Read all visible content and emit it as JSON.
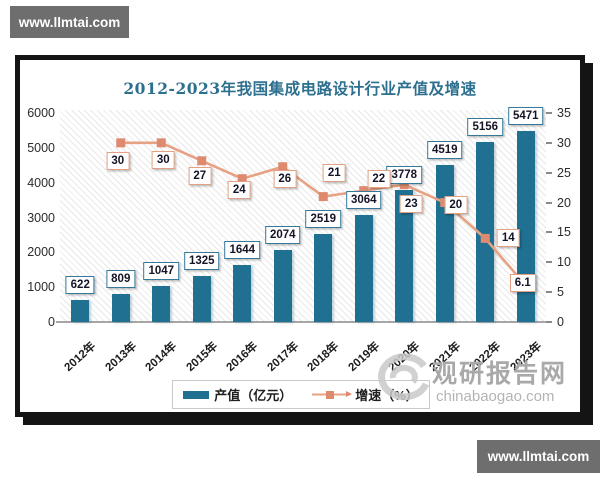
{
  "badges": {
    "top_left": "www.llmtai.com",
    "bottom_right": "www.llmtai.com"
  },
  "chart": {
    "title": "2012-2023年我国集成电路设计行业产值及增速",
    "watermark": {
      "name": "观研报告网",
      "site": "chinabaogao.com"
    }
  },
  "chart_data": {
    "type": "bar",
    "title": "2012-2023年我国集成电路设计行业产值及增速",
    "categories": [
      "2012年",
      "2013年",
      "2014年",
      "2015年",
      "2016年",
      "2017年",
      "2018年",
      "2019年",
      "2020年",
      "2021年",
      "2022年",
      "2023年"
    ],
    "series": [
      {
        "name": "产值（亿元）",
        "type": "bar",
        "axis": "left",
        "values": [
          622,
          809,
          1047,
          1325,
          1644,
          2074,
          2519,
          3064,
          3778,
          4519,
          5156,
          5471
        ],
        "color": "#1f7091"
      },
      {
        "name": "增速（%）",
        "type": "line",
        "axis": "right",
        "values": [
          null,
          30,
          30,
          27,
          24,
          26,
          21,
          22,
          23,
          20,
          14,
          6.1
        ],
        "color": "#e7a183",
        "marker_color": "#dd8a6e"
      }
    ],
    "xlabel": "",
    "ylabel_left": "",
    "ylabel_right": "",
    "left_axis": {
      "min": 0,
      "max": 6000,
      "step": 1000,
      "ticks": [
        "0",
        "1000",
        "2000",
        "3000",
        "4000",
        "5000",
        "6000"
      ]
    },
    "right_axis": {
      "min": 0,
      "max": 35,
      "step": 5,
      "ticks": [
        "0",
        "5",
        "10",
        "15",
        "20",
        "25",
        "30",
        "35"
      ]
    },
    "grid": false,
    "plot_background": "diagonal-hatch",
    "legend_position": "bottom",
    "colors": {
      "title": "#2d6f8e",
      "bar_label_border": "#35789a",
      "line_label_border": "#e2a183"
    }
  }
}
